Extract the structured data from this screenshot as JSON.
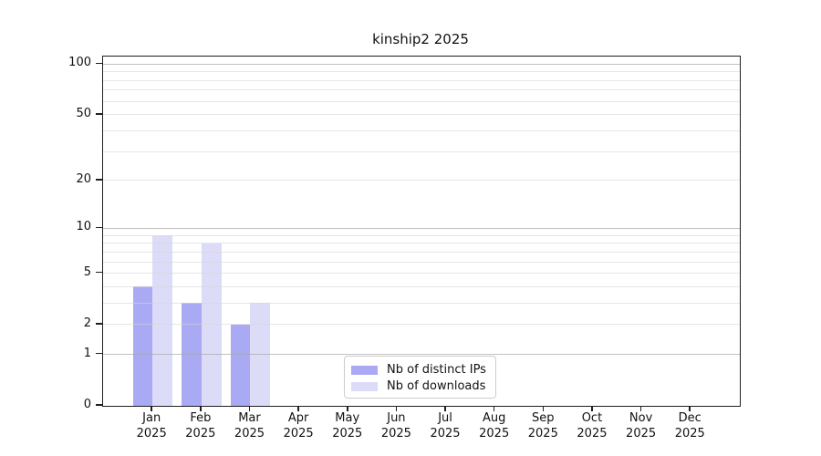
{
  "chart_data": {
    "type": "bar",
    "title": "kinship2 2025",
    "categories": [
      "Jan",
      "Feb",
      "Mar",
      "Apr",
      "May",
      "Jun",
      "Jul",
      "Aug",
      "Sep",
      "Oct",
      "Nov",
      "Dec"
    ],
    "year": "2025",
    "series": [
      {
        "name": "Nb of distinct IPs",
        "color": "#a9a9f4",
        "values": [
          4,
          3,
          2,
          0,
          0,
          0,
          0,
          0,
          0,
          0,
          0,
          0
        ]
      },
      {
        "name": "Nb of downloads",
        "color": "#dcdcf8",
        "values": [
          9,
          8,
          3,
          0,
          0,
          0,
          0,
          0,
          0,
          0,
          0,
          0
        ]
      }
    ],
    "yscale": "log1p",
    "ylim": [
      0,
      110
    ],
    "yticks": [
      0,
      1,
      2,
      5,
      10,
      20,
      50,
      100
    ],
    "grid": {
      "minor": [
        2,
        3,
        4,
        5,
        6,
        7,
        8,
        9,
        20,
        30,
        40,
        50,
        60,
        70,
        80,
        90
      ],
      "major": [
        1,
        10,
        100
      ]
    },
    "legend_position": "lower center",
    "axis_color": "#1f1f1f",
    "background_color": "#ffffff"
  }
}
